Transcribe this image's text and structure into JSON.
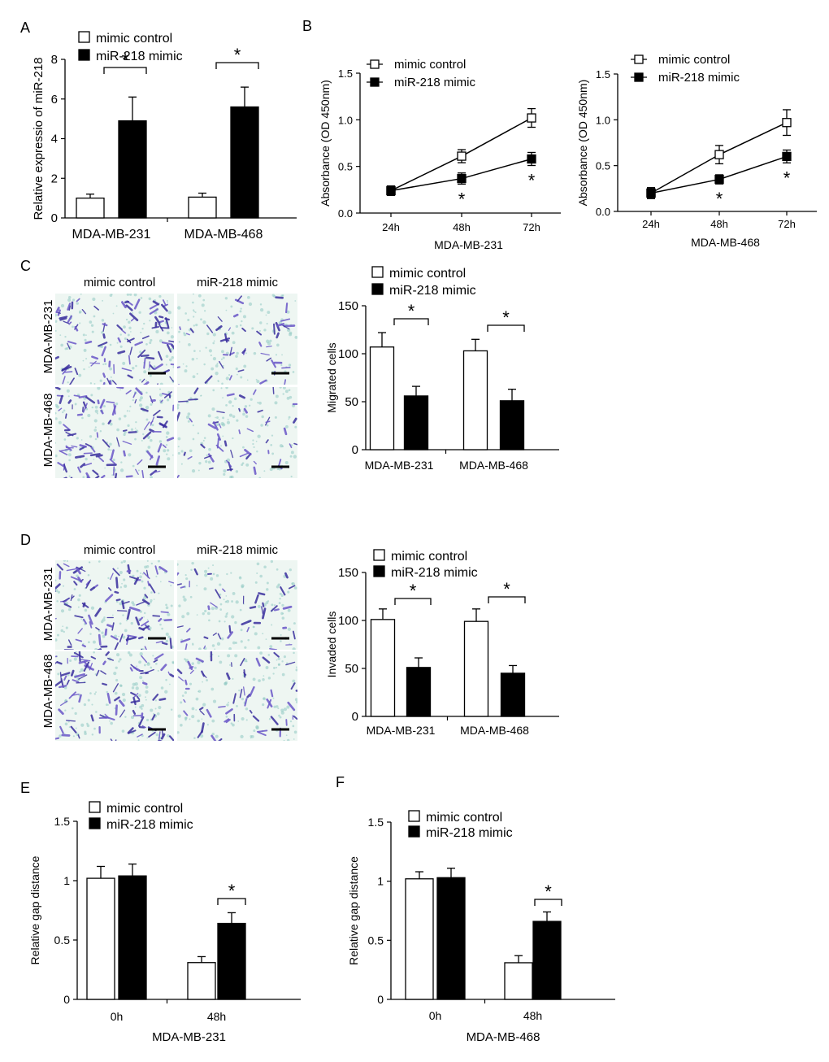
{
  "figure": {
    "panel_letters": [
      "A",
      "B",
      "C",
      "D",
      "E",
      "F"
    ]
  },
  "legend": {
    "control": "mimic control",
    "mimic": "miR-218 mimic"
  },
  "significance_marker": "*",
  "micrograph_headers": {
    "control": "mimic control",
    "mimic": "miR-218 mimic"
  },
  "micrograph_rows": [
    "MDA-MB-231",
    "MDA-MB-468"
  ],
  "colors": {
    "control_fill": "#ffffff",
    "mimic_fill": "#000000",
    "stain_dark": "#3a2f9e",
    "stain_mid": "#6a57c8",
    "stain_light": "#8fc9c2",
    "membrane_bg": "#eef6f2"
  },
  "chart_data": [
    {
      "id": "A",
      "type": "bar",
      "title": "",
      "xlabel": "",
      "ylabel": "Relative expressio of miR-218",
      "categories": [
        "MDA-MB-231",
        "MDA-MB-468"
      ],
      "ylim": [
        0,
        8
      ],
      "yticks": [
        "0",
        "2",
        "4",
        "6",
        "8"
      ],
      "series": [
        {
          "name": "mimic control",
          "values": [
            1.0,
            1.05
          ],
          "errors": [
            0.2,
            0.2
          ]
        },
        {
          "name": "miR-218 mimic",
          "values": [
            4.9,
            5.6
          ],
          "errors": [
            1.2,
            1.0
          ]
        }
      ],
      "significance": [
        "*",
        "*"
      ]
    },
    {
      "id": "B1",
      "type": "line",
      "xlabel": "MDA-MB-231",
      "ylabel": "Absorbance (OD 450nm)",
      "x": [
        "24h",
        "48h",
        "72h"
      ],
      "ylim": [
        0,
        1.5
      ],
      "yticks": [
        "0.0",
        "0.5",
        "1.0",
        "1.5"
      ],
      "series": [
        {
          "name": "mimic control",
          "values": [
            0.24,
            0.61,
            1.02
          ],
          "errors": [
            0.05,
            0.07,
            0.1
          ]
        },
        {
          "name": "miR-218 mimic",
          "values": [
            0.24,
            0.37,
            0.58
          ],
          "errors": [
            0.05,
            0.06,
            0.07
          ]
        }
      ],
      "significance": [
        "",
        "*",
        "*"
      ]
    },
    {
      "id": "B2",
      "type": "line",
      "xlabel": "MDA-MB-468",
      "ylabel": "Absorbance (OD 450nm)",
      "x": [
        "24h",
        "48h",
        "72h"
      ],
      "ylim": [
        0,
        1.5
      ],
      "yticks": [
        "0.0",
        "0.5",
        "1.0",
        "1.5"
      ],
      "series": [
        {
          "name": "mimic control",
          "values": [
            0.2,
            0.62,
            0.97
          ],
          "errors": [
            0.05,
            0.1,
            0.14
          ]
        },
        {
          "name": "miR-218 mimic",
          "values": [
            0.2,
            0.35,
            0.6
          ],
          "errors": [
            0.06,
            0.05,
            0.07
          ]
        }
      ],
      "significance": [
        "",
        "*",
        "*"
      ]
    },
    {
      "id": "C",
      "type": "bar",
      "xlabel": "",
      "ylabel": "Migrated cells",
      "categories": [
        "MDA-MB-231",
        "MDA-MB-468"
      ],
      "ylim": [
        0,
        150
      ],
      "yticks": [
        "0",
        "50",
        "100",
        "150"
      ],
      "series": [
        {
          "name": "mimic control",
          "values": [
            107,
            103
          ],
          "errors": [
            15,
            12
          ]
        },
        {
          "name": "miR-218 mimic",
          "values": [
            56,
            51
          ],
          "errors": [
            10,
            12
          ]
        }
      ],
      "significance": [
        "*",
        "*"
      ]
    },
    {
      "id": "D",
      "type": "bar",
      "xlabel": "",
      "ylabel": "Invaded cells",
      "categories": [
        "MDA-MB-231",
        "MDA-MB-468"
      ],
      "ylim": [
        0,
        150
      ],
      "yticks": [
        "0",
        "50",
        "100",
        "150"
      ],
      "series": [
        {
          "name": "mimic control",
          "values": [
            101,
            99
          ],
          "errors": [
            11,
            13
          ]
        },
        {
          "name": "miR-218 mimic",
          "values": [
            51,
            45
          ],
          "errors": [
            10,
            8
          ]
        }
      ],
      "significance": [
        "*",
        "*"
      ]
    },
    {
      "id": "E",
      "type": "bar",
      "xlabel": "MDA-MB-231",
      "ylabel": "Relative gap distance",
      "categories": [
        "0h",
        "48h"
      ],
      "ylim": [
        0,
        1.5
      ],
      "yticks": [
        "0",
        "0.5",
        "1",
        "1.5"
      ],
      "series": [
        {
          "name": "mimic control",
          "values": [
            1.02,
            0.31
          ],
          "errors": [
            0.1,
            0.05
          ]
        },
        {
          "name": "miR-218 mimic",
          "values": [
            1.04,
            0.64
          ],
          "errors": [
            0.1,
            0.09
          ]
        }
      ],
      "significance": [
        "",
        "*"
      ]
    },
    {
      "id": "F",
      "type": "bar",
      "xlabel": "MDA-MB-468",
      "ylabel": "Relative gap distance",
      "categories": [
        "0h",
        "48h"
      ],
      "ylim": [
        0,
        1.5
      ],
      "yticks": [
        "0",
        "0.5",
        "1",
        "1.5"
      ],
      "series": [
        {
          "name": "mimic control",
          "values": [
            1.02,
            0.31
          ],
          "errors": [
            0.06,
            0.06
          ]
        },
        {
          "name": "miR-218 mimic",
          "values": [
            1.03,
            0.66
          ],
          "errors": [
            0.08,
            0.08
          ]
        }
      ],
      "significance": [
        "",
        "*"
      ]
    }
  ]
}
